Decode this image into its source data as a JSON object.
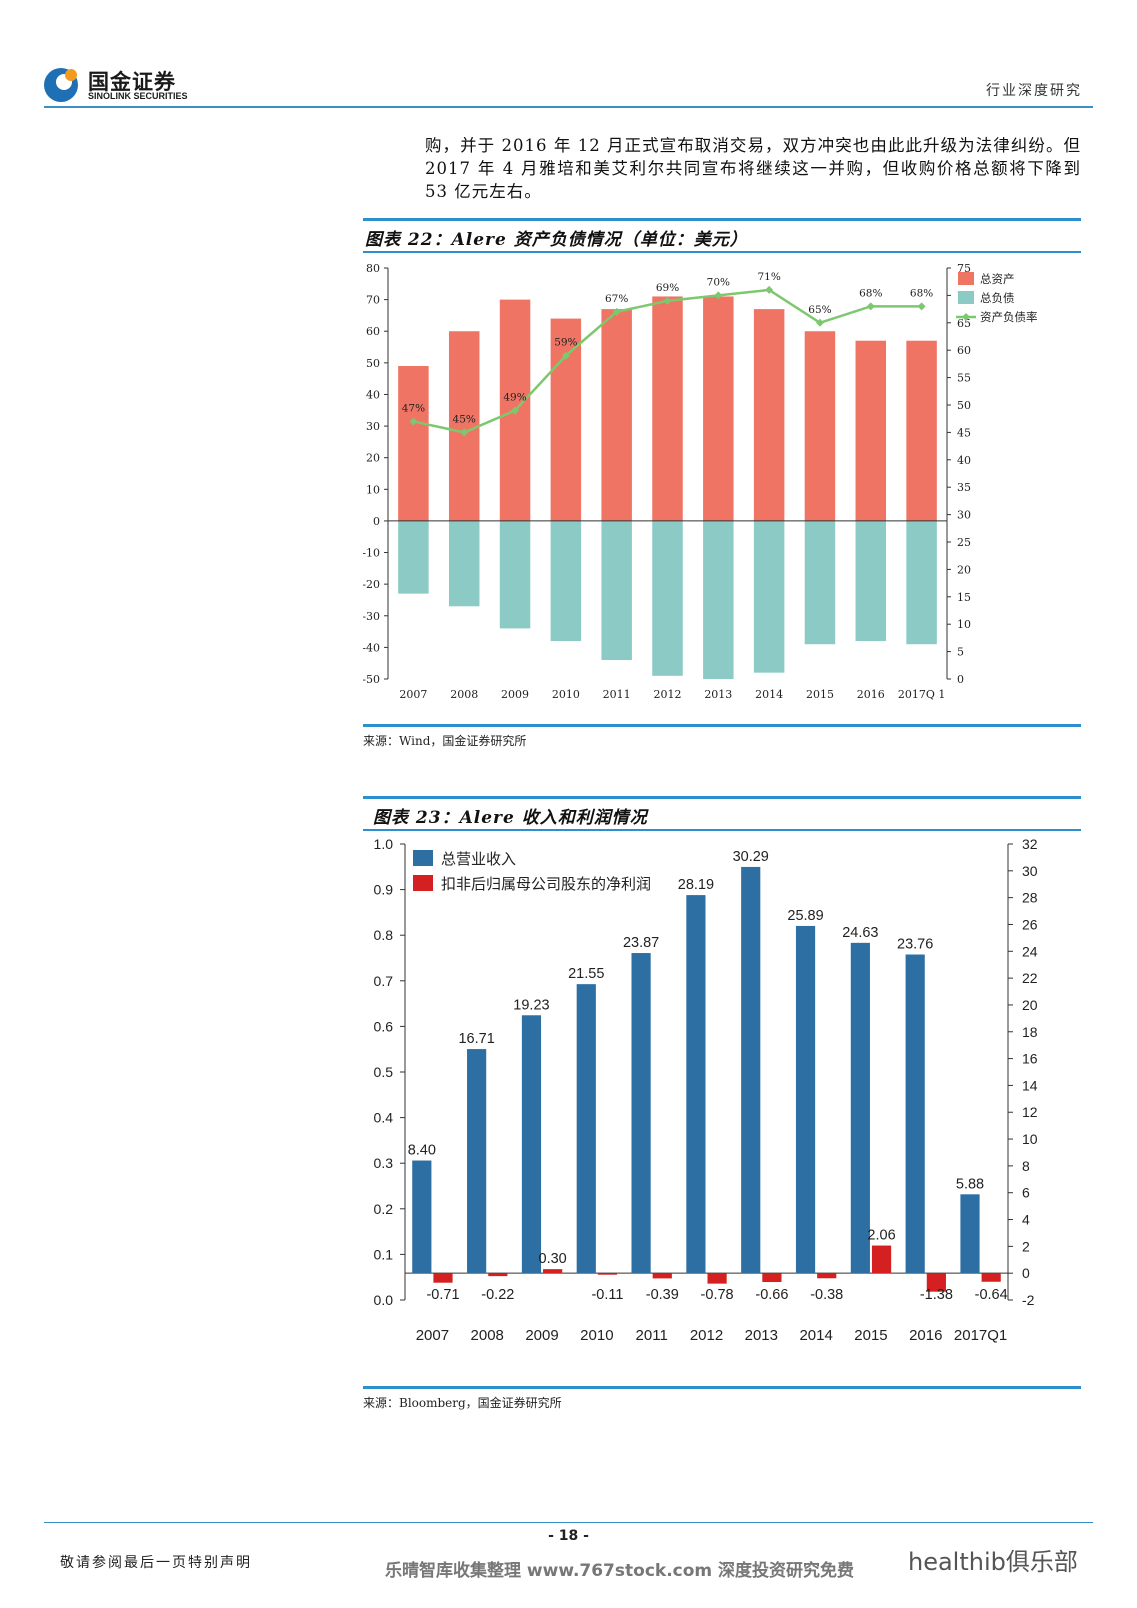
{
  "header": {
    "logo_cn": "国金证券",
    "logo_en": "SINOLINK SECURITIES",
    "section": "行业深度研究"
  },
  "body_text": "购，并于 2016 年 12 月正式宣布取消交易，双方冲突也由此此升级为法律纠纷。但 2017 年 4 月雅培和美艾利尔共同宣布将继续这一并购，但收购价格总额将下降到 53 亿元左右。",
  "figure1": {
    "title": "图表 22：Alere 资产负债情况（单位：美元）",
    "source": "来源：Wind，国金证券研究所"
  },
  "figure2": {
    "title": "图表 23：Alere 收入和利润情况",
    "source": "来源：Bloomberg，国金证券研究所"
  },
  "footer": {
    "page_num": "- 18 -",
    "notice": "敬请参阅最后一页特别声明",
    "watermark": "乐晴智库收集整理 www.767stock.com 深度投资研究免费",
    "wechat": "healthib俱乐部"
  },
  "chart_data": [
    {
      "type": "bar",
      "categories": [
        "2007",
        "2008",
        "2009",
        "2010",
        "2011",
        "2012",
        "2013",
        "2014",
        "2015",
        "2016",
        "2017Q 1"
      ],
      "series": [
        {
          "name": "总资产",
          "color": "#f07464",
          "values": [
            49,
            60,
            70,
            64,
            67,
            71,
            71,
            67,
            60,
            57,
            57
          ]
        },
        {
          "name": "总负债",
          "color": "#8ccbc5",
          "values": [
            -23,
            -27,
            -34,
            -38,
            -44,
            -49,
            -50,
            -48,
            -39,
            -38,
            -39
          ]
        },
        {
          "name": "资产负债率",
          "color": "#7dc86e",
          "type": "line",
          "axis": "right",
          "values": [
            47,
            45,
            49,
            59,
            67,
            69,
            70,
            71,
            65,
            68,
            68
          ],
          "labels": [
            "47%",
            "45%",
            "49%",
            "59%",
            "67%",
            "69%",
            "70%",
            "71%",
            "65%",
            "68%",
            "68%"
          ]
        }
      ],
      "ylim": [
        -50,
        80
      ],
      "yticks": [
        80,
        70,
        60,
        50,
        40,
        30,
        20,
        10,
        0,
        -10,
        -20,
        -30,
        -40,
        -50
      ],
      "y2lim": [
        0,
        75
      ],
      "y2ticks": [
        75,
        70,
        65,
        60,
        55,
        50,
        45,
        40,
        35,
        30,
        25,
        20,
        15,
        10,
        5,
        0
      ],
      "legend_position": "top-right"
    },
    {
      "type": "bar",
      "categories": [
        "2007",
        "2008",
        "2009",
        "2010",
        "2011",
        "2012",
        "2013",
        "2014",
        "2015",
        "2016",
        "2017Q1"
      ],
      "series": [
        {
          "name": "总营业收入",
          "color": "#2e6fa3",
          "axis": "right",
          "values": [
            8.4,
            16.71,
            19.23,
            21.55,
            23.87,
            28.19,
            30.29,
            25.89,
            24.63,
            23.76,
            5.88
          ],
          "labels": [
            "8.40",
            "16.71",
            "19.23",
            "21.55",
            "23.87",
            "28.19",
            "30.29",
            "25.89",
            "24.63",
            "23.76",
            "5.88"
          ]
        },
        {
          "name": "扣非后归属母公司股东的净利润",
          "color": "#d42020",
          "axis": "right",
          "values": [
            -0.71,
            -0.22,
            0.3,
            -0.11,
            -0.39,
            -0.78,
            -0.66,
            -0.38,
            2.06,
            -1.38,
            -0.64
          ],
          "labels": [
            "-0.71",
            "-0.22",
            "0.30",
            "-0.11",
            "-0.39",
            "-0.78",
            "-0.66",
            "-0.38",
            "2.06",
            "-1.38",
            "-0.64"
          ]
        }
      ],
      "ylim": [
        0,
        1.0
      ],
      "yticks": [
        "1.0",
        "0.9",
        "0.8",
        "0.7",
        "0.6",
        "0.5",
        "0.4",
        "0.3",
        "0.2",
        "0.1",
        "0.0"
      ],
      "y2lim": [
        -2,
        32
      ],
      "y2ticks": [
        32,
        30,
        28,
        26,
        24,
        22,
        20,
        18,
        16,
        14,
        12,
        10,
        8,
        6,
        4,
        2,
        0,
        -2
      ],
      "legend_position": "top-left"
    }
  ]
}
